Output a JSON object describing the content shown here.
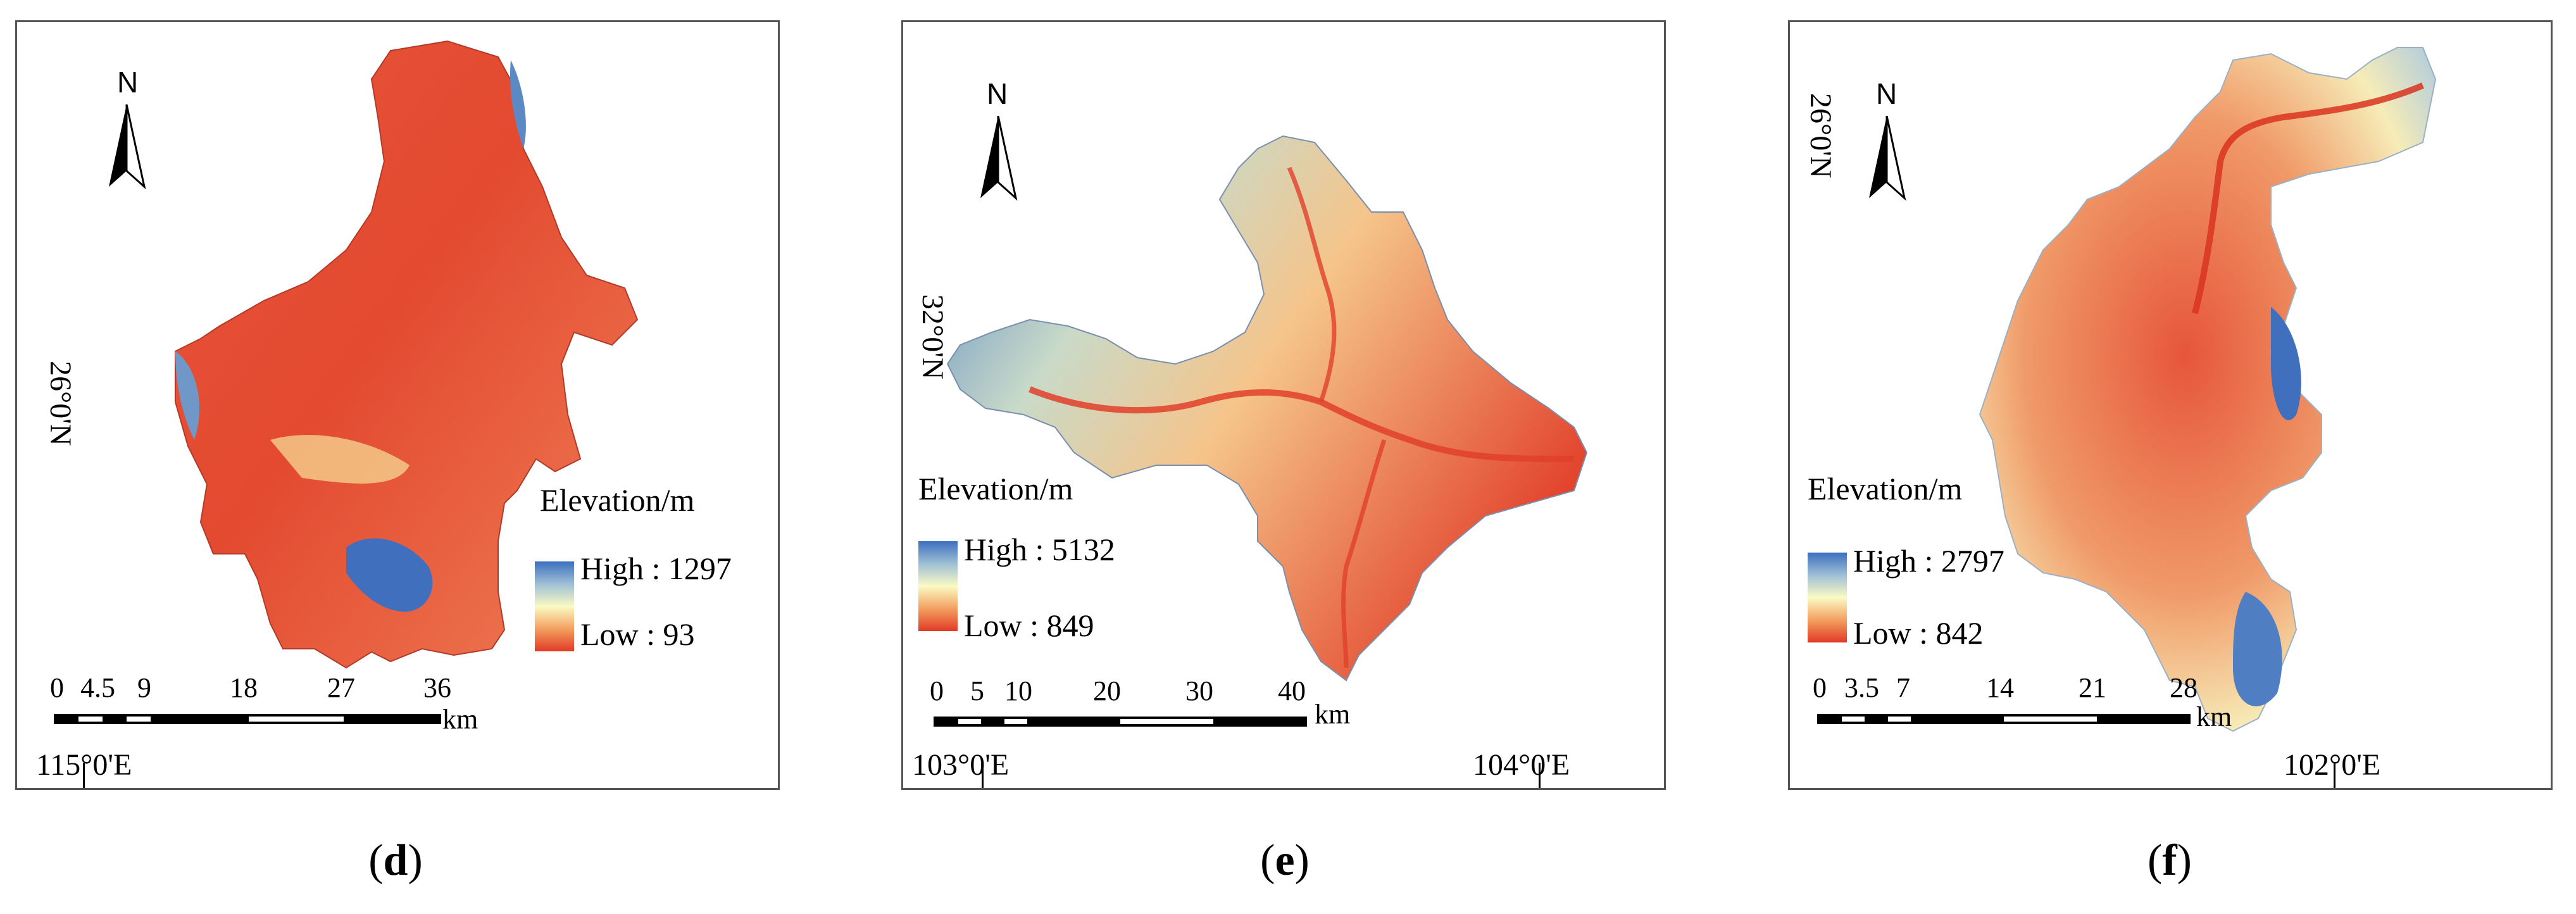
{
  "panels": {
    "d": {
      "caption_open": "(",
      "caption_letter": "d",
      "caption_close": ")",
      "north": "N",
      "lat_label": "26°0'N",
      "lon_labels": [
        "115°0'E"
      ],
      "legend_title": "Elevation/m",
      "legend_high": "High : 1297",
      "legend_low": "Low : 93",
      "scale_ticks": [
        "0",
        "4.5",
        "9",
        "18",
        "27",
        "36"
      ],
      "scale_unit": "km"
    },
    "e": {
      "caption_open": "(",
      "caption_letter": "e",
      "caption_close": ")",
      "north": "N",
      "lat_label": "32°0'N",
      "lon_labels": [
        "103°0'E",
        "104°0'E"
      ],
      "legend_title": "Elevation/m",
      "legend_high": "High : 5132",
      "legend_low": "Low : 849",
      "scale_ticks": [
        "0",
        "5",
        "10",
        "20",
        "30",
        "40"
      ],
      "scale_unit": "km"
    },
    "f": {
      "caption_open": "(",
      "caption_letter": "f",
      "caption_close": ")",
      "north": "N",
      "lat_label": "26°0'N",
      "lon_labels": [
        "102°0'E"
      ],
      "legend_title": "Elevation/m",
      "legend_high": "High : 2797",
      "legend_low": "Low : 842",
      "scale_ticks": [
        "0",
        "3.5",
        "7",
        "14",
        "21",
        "28"
      ],
      "scale_unit": "km"
    }
  },
  "colors": {
    "high": "#3c6fbf",
    "mid_high": "#9fbfd6",
    "mid": "#fafac4",
    "mid_low": "#f3a060",
    "low": "#e23a25",
    "frame": "#555555"
  }
}
